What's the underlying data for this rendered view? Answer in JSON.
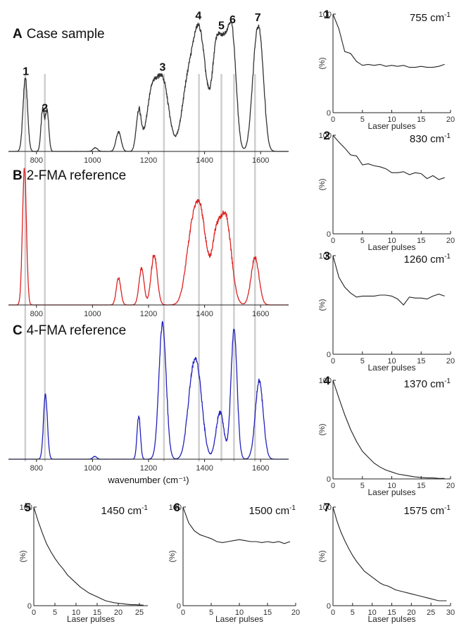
{
  "chart_data": [
    {
      "id": "A",
      "type": "line",
      "panel_letter": "A",
      "title": "Case sample",
      "color": "#333333",
      "xlim": [
        700,
        1700
      ],
      "xticks": [
        800,
        1000,
        1200,
        1400,
        1600
      ],
      "peaks": [
        {
          "x": 760,
          "y": 0.6,
          "w": 8
        },
        {
          "x": 822,
          "y": 0.34,
          "w": 6
        },
        {
          "x": 838,
          "y": 0.34,
          "w": 6
        },
        {
          "x": 1010,
          "y": 0.03,
          "w": 8
        },
        {
          "x": 1093,
          "y": 0.16,
          "w": 9
        },
        {
          "x": 1165,
          "y": 0.33,
          "w": 9
        },
        {
          "x": 1210,
          "y": 0.42,
          "w": 18
        },
        {
          "x": 1250,
          "y": 0.58,
          "w": 22
        },
        {
          "x": 1335,
          "y": 0.4,
          "w": 20
        },
        {
          "x": 1380,
          "y": 1.0,
          "w": 25
        },
        {
          "x": 1440,
          "y": 0.65,
          "w": 14
        },
        {
          "x": 1470,
          "y": 0.82,
          "w": 18
        },
        {
          "x": 1500,
          "y": 0.8,
          "w": 14
        },
        {
          "x": 1580,
          "y": 0.6,
          "w": 14
        },
        {
          "x": 1600,
          "y": 0.72,
          "w": 14
        }
      ],
      "peak_labels": [
        {
          "num": "1",
          "x": 762
        },
        {
          "num": "2",
          "x": 830
        },
        {
          "num": "3",
          "x": 1250
        },
        {
          "num": "4",
          "x": 1378
        },
        {
          "num": "5",
          "x": 1460
        },
        {
          "num": "6",
          "x": 1500
        },
        {
          "num": "7",
          "x": 1590
        }
      ]
    },
    {
      "id": "B",
      "type": "line",
      "panel_letter": "B",
      "title": "2-FMA reference",
      "color": "#dd2222",
      "xlim": [
        700,
        1700
      ],
      "xticks": [
        800,
        1000,
        1200,
        1400,
        1600
      ],
      "peaks": [
        {
          "x": 757,
          "y": 1.0,
          "w": 7
        },
        {
          "x": 1093,
          "y": 0.2,
          "w": 8
        },
        {
          "x": 1175,
          "y": 0.27,
          "w": 9
        },
        {
          "x": 1220,
          "y": 0.37,
          "w": 11
        },
        {
          "x": 1350,
          "y": 0.38,
          "w": 20
        },
        {
          "x": 1385,
          "y": 0.66,
          "w": 22
        },
        {
          "x": 1440,
          "y": 0.4,
          "w": 15
        },
        {
          "x": 1475,
          "y": 0.65,
          "w": 20
        },
        {
          "x": 1580,
          "y": 0.35,
          "w": 14
        }
      ]
    },
    {
      "id": "C",
      "type": "line",
      "panel_letter": "C",
      "title": "4-FMA reference",
      "color": "#2222bb",
      "xlim": [
        700,
        1700
      ],
      "xticks": [
        800,
        1000,
        1200,
        1400,
        1600
      ],
      "xlabel": "wavenumber (cm⁻¹)",
      "peaks": [
        {
          "x": 832,
          "y": 0.47,
          "w": 7
        },
        {
          "x": 1008,
          "y": 0.02,
          "w": 7
        },
        {
          "x": 1165,
          "y": 0.32,
          "w": 6
        },
        {
          "x": 1250,
          "y": 1.0,
          "w": 13
        },
        {
          "x": 1350,
          "y": 0.35,
          "w": 16
        },
        {
          "x": 1375,
          "y": 0.6,
          "w": 18
        },
        {
          "x": 1455,
          "y": 0.35,
          "w": 14
        },
        {
          "x": 1505,
          "y": 0.95,
          "w": 11
        },
        {
          "x": 1595,
          "y": 0.58,
          "w": 14
        }
      ]
    }
  ],
  "reference_lines": [
    760,
    830,
    1255,
    1380,
    1460,
    1505,
    1580
  ],
  "insets": [
    {
      "num": "1",
      "wavenumber": "755 cm",
      "sup": "-1",
      "xmax": 20,
      "xticks": [
        0,
        5,
        10,
        15,
        20
      ],
      "x": [
        0,
        1,
        2,
        3,
        4,
        5,
        6,
        7,
        8,
        9,
        10,
        11,
        12,
        13,
        14,
        15,
        16,
        17,
        18,
        19
      ],
      "y": [
        100,
        85,
        62,
        60,
        52,
        48,
        49,
        48,
        49,
        47,
        48,
        47,
        48,
        46,
        46,
        47,
        46,
        46,
        47,
        49
      ]
    },
    {
      "num": "2",
      "wavenumber": "830 cm",
      "sup": "-1",
      "xmax": 20,
      "xticks": [
        0,
        5,
        10,
        15,
        20
      ],
      "x": [
        0,
        1,
        2,
        3,
        4,
        5,
        6,
        7,
        8,
        9,
        10,
        11,
        12,
        13,
        14,
        15,
        16,
        17,
        18,
        19
      ],
      "y": [
        100,
        93,
        87,
        80,
        79,
        70,
        71,
        69,
        68,
        66,
        62,
        62,
        63,
        60,
        62,
        61,
        56,
        59,
        55,
        57
      ]
    },
    {
      "num": "3",
      "wavenumber": "1260 cm",
      "sup": "-1",
      "xmax": 20,
      "xticks": [
        0,
        5,
        10,
        15,
        20
      ],
      "x": [
        0,
        1,
        2,
        3,
        4,
        5,
        6,
        7,
        8,
        9,
        10,
        11,
        12,
        13,
        14,
        15,
        16,
        17,
        18,
        19
      ],
      "y": [
        100,
        78,
        68,
        62,
        58,
        59,
        59,
        59,
        60,
        60,
        59,
        56,
        50,
        58,
        57,
        57,
        56,
        59,
        61,
        59
      ]
    },
    {
      "num": "4",
      "wavenumber": "1370 cm",
      "sup": "-1",
      "xmax": 20,
      "xticks": [
        0,
        5,
        10,
        15,
        20
      ],
      "x": [
        0,
        1,
        2,
        3,
        4,
        5,
        6,
        7,
        8,
        9,
        10,
        11,
        12,
        13,
        14,
        15,
        16,
        17,
        18,
        19
      ],
      "y": [
        100,
        82,
        65,
        50,
        38,
        28,
        22,
        16,
        12,
        9,
        7,
        5,
        4,
        3,
        2,
        1.5,
        1,
        1,
        0.5,
        0.5
      ]
    },
    {
      "num": "5",
      "wavenumber": "1450 cm",
      "sup": "-1",
      "xmax": 27,
      "xticks": [
        0,
        5,
        10,
        15,
        20,
        25
      ],
      "x": [
        0,
        1,
        2,
        3,
        4,
        5,
        6,
        7,
        8,
        9,
        10,
        11,
        12,
        13,
        14,
        15,
        16,
        17,
        18,
        19,
        20,
        21,
        22,
        23,
        24,
        25,
        26
      ],
      "y": [
        100,
        86,
        74,
        63,
        55,
        48,
        42,
        37,
        31,
        27,
        23,
        19,
        16,
        13,
        11,
        9,
        7,
        5,
        4,
        3,
        2.5,
        2,
        1.5,
        1,
        1,
        0.8,
        0.5
      ]
    },
    {
      "num": "6",
      "wavenumber": "1500 cm",
      "sup": "-1",
      "xmax": 20,
      "xticks": [
        0,
        5,
        10,
        15,
        20
      ],
      "x": [
        0,
        1,
        2,
        3,
        4,
        5,
        6,
        7,
        8,
        9,
        10,
        11,
        12,
        13,
        14,
        15,
        16,
        17,
        18,
        19
      ],
      "y": [
        100,
        84,
        76,
        72,
        70,
        68,
        65,
        64,
        65,
        66,
        67,
        66,
        65,
        65,
        64,
        65,
        64,
        65,
        63,
        65
      ]
    },
    {
      "num": "7",
      "wavenumber": "1575 cm",
      "sup": "-1",
      "xmax": 30,
      "xticks": [
        0,
        5,
        10,
        15,
        20,
        25,
        30
      ],
      "x": [
        0,
        1,
        2,
        3,
        4,
        5,
        6,
        7,
        8,
        9,
        10,
        11,
        12,
        13,
        14,
        15,
        16,
        17,
        18,
        19,
        20,
        21,
        22,
        23,
        24,
        25,
        26,
        27,
        28,
        29
      ],
      "y": [
        100,
        86,
        75,
        66,
        58,
        51,
        45,
        40,
        35,
        32,
        29,
        26,
        23,
        21,
        20,
        18,
        16,
        15,
        14,
        13,
        12,
        11,
        10,
        9,
        8,
        7,
        6,
        5,
        5,
        5
      ]
    }
  ],
  "inset_axes": {
    "y_top": "100",
    "y_bottom": "0",
    "ylabel": "(%)",
    "xlabel": "Laser pulses"
  }
}
